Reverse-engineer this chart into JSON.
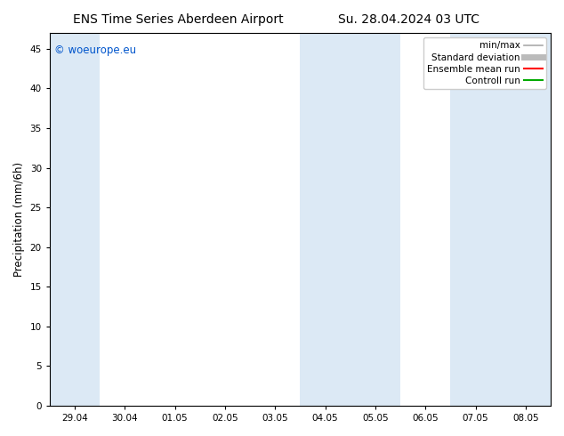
{
  "title_left": "ENS Time Series Aberdeen Airport",
  "title_right": "Su. 28.04.2024 03 UTC",
  "ylabel": "Precipitation (mm/6h)",
  "background_color": "#ffffff",
  "plot_bg_color": "#ffffff",
  "ylim": [
    0,
    47
  ],
  "yticks": [
    0,
    5,
    10,
    15,
    20,
    25,
    30,
    35,
    40,
    45
  ],
  "xtick_labels": [
    "29.04",
    "30.04",
    "01.05",
    "02.05",
    "03.05",
    "04.05",
    "05.05",
    "06.05",
    "07.05",
    "08.05"
  ],
  "n_ticks": 10,
  "shaded_bands": [
    {
      "x_start": 0,
      "x_end": 1,
      "color": "#dce9f5"
    },
    {
      "x_start": 5,
      "x_end": 7,
      "color": "#dce9f5"
    },
    {
      "x_start": 8,
      "x_end": 10,
      "color": "#dce9f5"
    }
  ],
  "xlim": [
    0,
    10
  ],
  "legend_entries": [
    {
      "label": "min/max",
      "color": "#aaaaaa",
      "lw": 1.2
    },
    {
      "label": "Standard deviation",
      "color": "#bbbbbb",
      "lw": 5
    },
    {
      "label": "Ensemble mean run",
      "color": "#ff0000",
      "lw": 1.5
    },
    {
      "label": "Controll run",
      "color": "#00aa00",
      "lw": 1.5
    }
  ],
  "watermark": "© woeurope.eu",
  "watermark_color": "#0055cc",
  "title_fontsize": 10,
  "tick_fontsize": 7.5,
  "ylabel_fontsize": 8.5,
  "legend_fontsize": 7.5
}
